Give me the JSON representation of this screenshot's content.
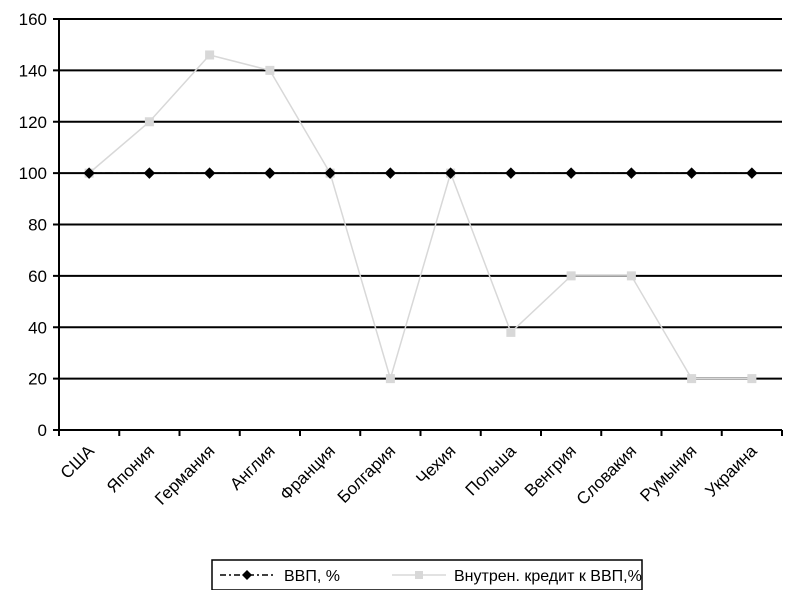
{
  "chart_data": {
    "type": "line",
    "title": "",
    "xlabel": "",
    "ylabel": "",
    "categories": [
      "США",
      "Япония",
      "Германия",
      "Англия",
      "Франция",
      "Болгария",
      "Чехия",
      "Польша",
      "Венгрия",
      "Словакия",
      "Румыния",
      "Украина"
    ],
    "ylim": [
      0,
      160
    ],
    "yticks": [
      0,
      20,
      40,
      60,
      80,
      100,
      120,
      140,
      160
    ],
    "grid": true,
    "legend_position": "bottom",
    "series": [
      {
        "name": "ВВП, %",
        "values": [
          100,
          100,
          100,
          100,
          100,
          100,
          100,
          100,
          100,
          100,
          100,
          100
        ],
        "color": "#000000",
        "marker": "diamond",
        "line": "dash-dot"
      },
      {
        "name": "Внутрен. кредит к ВВП,%",
        "values": [
          100,
          120,
          146,
          140,
          100,
          20,
          100,
          38,
          60,
          60,
          20,
          20
        ],
        "color": "#d8d8d8",
        "marker": "square",
        "line": "solid"
      }
    ]
  }
}
